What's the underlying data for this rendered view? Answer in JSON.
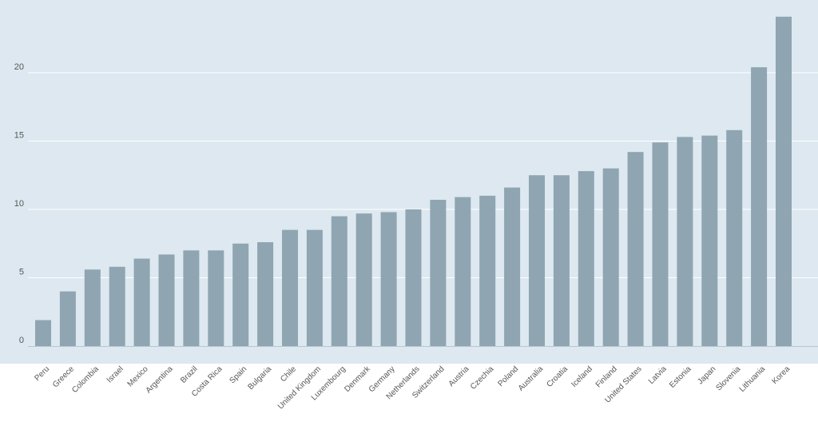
{
  "chart_data": {
    "type": "bar",
    "title": "",
    "xlabel": "",
    "ylabel": "",
    "ylim": [
      0,
      24.5
    ],
    "yticks": [
      0,
      5,
      10,
      15,
      20
    ],
    "grid": true,
    "colors": {
      "plot_bg": "#dde8f0",
      "bar": "#8fa5b2",
      "grid": "#ffffff",
      "axis": "#b9c7d1"
    },
    "categories": [
      "Peru",
      "Greece",
      "Colombia",
      "Israel",
      "Mexico",
      "Argentina",
      "Brazil",
      "Costa Rica",
      "Spain",
      "Bulgaria",
      "Chile",
      "United Kingdom",
      "Luxembourg",
      "Denmark",
      "Germany",
      "Netherlands",
      "Switzerland",
      "Austria",
      "Czechia",
      "Poland",
      "Australia",
      "Croatia",
      "Iceland",
      "Finland",
      "United States",
      "Latvia",
      "Estonia",
      "Japan",
      "Slovenia",
      "Lithuania",
      "Korea"
    ],
    "values": [
      1.9,
      4.0,
      5.6,
      5.8,
      6.4,
      6.7,
      7.0,
      7.0,
      7.5,
      7.6,
      8.5,
      8.5,
      9.5,
      9.7,
      9.8,
      10.0,
      10.7,
      10.9,
      11.0,
      11.6,
      12.5,
      12.5,
      12.8,
      13.0,
      14.2,
      14.9,
      15.3,
      15.4,
      15.8,
      20.4,
      24.1
    ]
  }
}
